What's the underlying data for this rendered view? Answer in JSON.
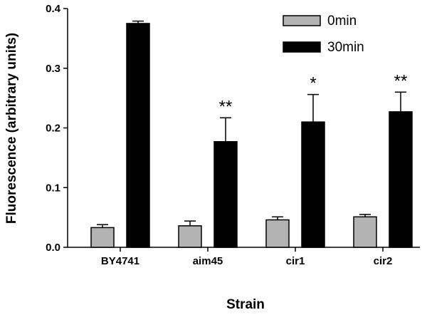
{
  "chart_data": {
    "type": "bar",
    "title": "",
    "xlabel": "Strain",
    "ylabel": "Fluorescence (arbitrary units)",
    "ylim": [
      0,
      0.4
    ],
    "yticks": [
      "0.0",
      "0.1",
      "0.2",
      "0.3",
      "0.4"
    ],
    "categories": [
      "BY4741",
      "aim45",
      "cir1",
      "cir2"
    ],
    "series": [
      {
        "name": "0min",
        "color": "#b3b3b3",
        "values": [
          0.033,
          0.036,
          0.046,
          0.051
        ],
        "errors": [
          0.005,
          0.008,
          0.005,
          0.004
        ]
      },
      {
        "name": "30min",
        "color": "#000000",
        "values": [
          0.375,
          0.177,
          0.21,
          0.227
        ],
        "errors": [
          0.004,
          0.04,
          0.046,
          0.033
        ]
      }
    ],
    "annotations": [
      "",
      "**",
      "*",
      "**"
    ],
    "legend_position": "top-right",
    "grid": false
  }
}
